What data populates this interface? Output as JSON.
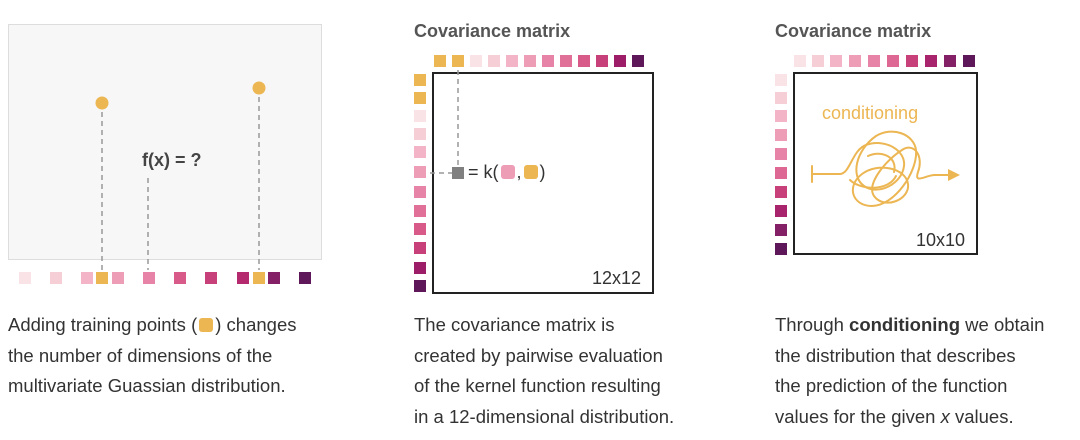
{
  "colors": {
    "orange": "#ECB653",
    "gray_square": "#808080",
    "ramp_12": [
      "#F9E3E6",
      "#F5CED6",
      "#F2B4C6",
      "#EE9DB7",
      "#E883A8",
      "#E07097",
      "#D85A88",
      "#C84079",
      "#B52A6E",
      "#9E1D68",
      "#832066",
      "#5E1758"
    ],
    "ramp_10": [
      "#F9E3E6",
      "#F5CED6",
      "#F2B4C6",
      "#EE9DB7",
      "#E883A8",
      "#DC6893",
      "#C84079",
      "#A8246C",
      "#832066",
      "#5E1758"
    ]
  },
  "panel1": {
    "function_label": "f(x) = ?",
    "caption": {
      "line1_prefix": "Adding training points (",
      "line1_suffix": ") changes",
      "line2": "the number of dimensions of the",
      "line3": "multivariate Guassian distribution."
    }
  },
  "panel2": {
    "title": "Covariance matrix",
    "kernel_prefix": "= k(",
    "kernel_comma": ",",
    "kernel_suffix": ")",
    "dimension_label": "12x12",
    "caption": {
      "line1": "The covariance matrix is",
      "line2": "created by pairwise evaluation",
      "line3": "of the kernel function resulting",
      "line4": "in a 12-dimensional distribution."
    }
  },
  "panel3": {
    "title": "Covariance matrix",
    "conditioning_label": "conditioning",
    "dimension_label": "10x10",
    "caption": {
      "line1_prefix": "Through ",
      "line1_bold": "conditioning",
      "line1_suffix": " we obtain",
      "line2": "the distribution that describes",
      "line3": "the prediction of the function",
      "line4_prefix": "values for the given ",
      "line4_italic": "x",
      "line4_suffix": " values."
    }
  }
}
